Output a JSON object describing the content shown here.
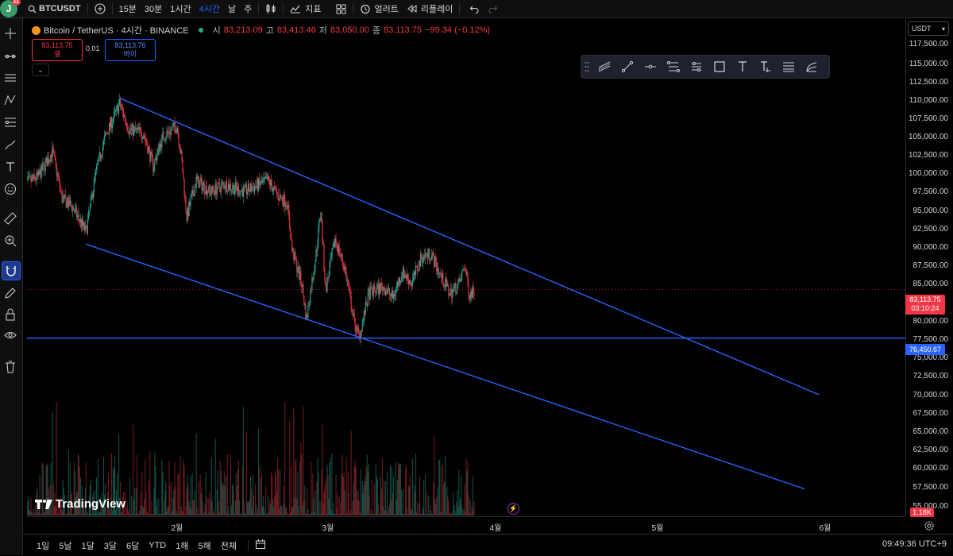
{
  "topbar": {
    "avatar_letter": "J",
    "avatar_badge": "11",
    "symbol": "BTCUSDT",
    "intervals": [
      "15분",
      "30분",
      "1시간",
      "4시간",
      "날",
      "주"
    ],
    "active_interval": "4시간",
    "indicators_label": "지표",
    "alert_label": "얼러트",
    "replay_label": "리플레이"
  },
  "legend": {
    "title": "Bitcoin / TetherUS · 4시간 · BINANCE",
    "open_key": "시",
    "open": "83,213.09",
    "high_key": "고",
    "high": "83,413.46",
    "low_key": "저",
    "low": "83,050.00",
    "close_key": "종",
    "close": "83,113.75",
    "change": "−99.34 (−0.12%)",
    "sell_price": "83,113.75",
    "sell_label": "셀",
    "buy_price": "83,113.76",
    "buy_label": "바이",
    "spread": "0.01"
  },
  "right_axis": {
    "currency": "USDT",
    "last_price": "83,113.75",
    "countdown": "03:10:24",
    "level_price": "76,450.67",
    "volume_label": "1.18K",
    "ticks": [
      "117,500.00",
      "115,000.00",
      "112,500.00",
      "110,000.00",
      "107,500.00",
      "105,000.00",
      "102,500.00",
      "100,000.00",
      "97,500.00",
      "95,000.00",
      "92,500.00",
      "90,000.00",
      "87,500.00",
      "85,000.00",
      "80,000.00",
      "77,500.00",
      "75,000.00",
      "72,500.00",
      "70,000.00",
      "67,500.00",
      "65,000.00",
      "62,500.00",
      "60,000.00",
      "57,500.00",
      "55,000.00"
    ]
  },
  "x_axis": {
    "labels": [
      "2월",
      "3월",
      "4월",
      "5월",
      "6월"
    ]
  },
  "bottom": {
    "ranges": [
      "1일",
      "5날",
      "1달",
      "3달",
      "6달",
      "YTD",
      "1해",
      "5해",
      "전체"
    ],
    "clock": "09:49:36 UTC+9"
  },
  "watermark": "TradingView",
  "colors": {
    "up": "#22ab94",
    "down": "#f23645",
    "trendline": "#2962ff",
    "accent": "#2962ff"
  },
  "chart_data": {
    "type": "candlestick",
    "symbol": "BTCUSDT",
    "timeframe": "4시간",
    "trend_lines": [
      {
        "name": "upper",
        "from": [
          "2025-01-20",
          109300
        ],
        "to": [
          "2025-06-15",
          68700
        ]
      },
      {
        "name": "lower",
        "from": [
          "2025-01-13",
          89300
        ],
        "to": [
          "2025-06-12",
          55800
        ]
      }
    ],
    "horizontal_level": 76450.67,
    "last_price": 83113.75,
    "price_path": [
      [
        "2024-12-31",
        97500
      ],
      [
        "2025-01-03",
        98500
      ],
      [
        "2025-01-06",
        102000
      ],
      [
        "2025-01-08",
        95500
      ],
      [
        "2025-01-10",
        94500
      ],
      [
        "2025-01-13",
        91000
      ],
      [
        "2025-01-15",
        99000
      ],
      [
        "2025-01-17",
        104000
      ],
      [
        "2025-01-20",
        108500
      ],
      [
        "2025-01-22",
        105000
      ],
      [
        "2025-01-25",
        104500
      ],
      [
        "2025-01-27",
        100000
      ],
      [
        "2025-01-29",
        104000
      ],
      [
        "2025-02-01",
        105500
      ],
      [
        "2025-02-02",
        100500
      ],
      [
        "2025-02-03",
        93000
      ],
      [
        "2025-02-05",
        98000
      ],
      [
        "2025-02-08",
        96500
      ],
      [
        "2025-02-11",
        97500
      ],
      [
        "2025-02-15",
        96500
      ],
      [
        "2025-02-20",
        98000
      ],
      [
        "2025-02-22",
        96000
      ],
      [
        "2025-02-24",
        95000
      ],
      [
        "2025-02-25",
        88500
      ],
      [
        "2025-02-27",
        84000
      ],
      [
        "2025-02-28",
        79000
      ],
      [
        "2025-03-02",
        88000
      ],
      [
        "2025-03-03",
        94000
      ],
      [
        "2025-03-04",
        83000
      ],
      [
        "2025-03-06",
        90000
      ],
      [
        "2025-03-08",
        86000
      ],
      [
        "2025-03-10",
        78500
      ],
      [
        "2025-03-11",
        76600
      ],
      [
        "2025-03-13",
        82500
      ],
      [
        "2025-03-16",
        83500
      ],
      [
        "2025-03-18",
        82000
      ],
      [
        "2025-03-20",
        85500
      ],
      [
        "2025-03-22",
        84000
      ],
      [
        "2025-03-24",
        87500
      ],
      [
        "2025-03-26",
        88000
      ],
      [
        "2025-03-28",
        85000
      ],
      [
        "2025-03-30",
        82500
      ],
      [
        "2025-04-01",
        84000
      ],
      [
        "2025-04-02",
        86500
      ],
      [
        "2025-04-03",
        82500
      ],
      [
        "2025-04-04",
        83113.75
      ]
    ]
  }
}
